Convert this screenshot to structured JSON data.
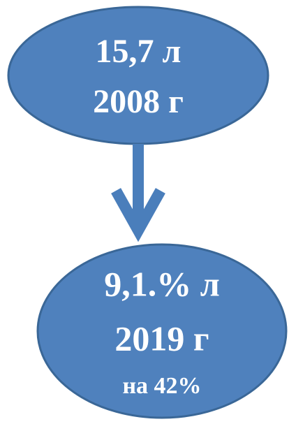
{
  "nodes": [
    {
      "lines": [
        "15,7 л",
        "2008 г"
      ]
    },
    {
      "lines": [
        "9,1.% л",
        "2019 г",
        "на 42%"
      ]
    }
  ]
}
